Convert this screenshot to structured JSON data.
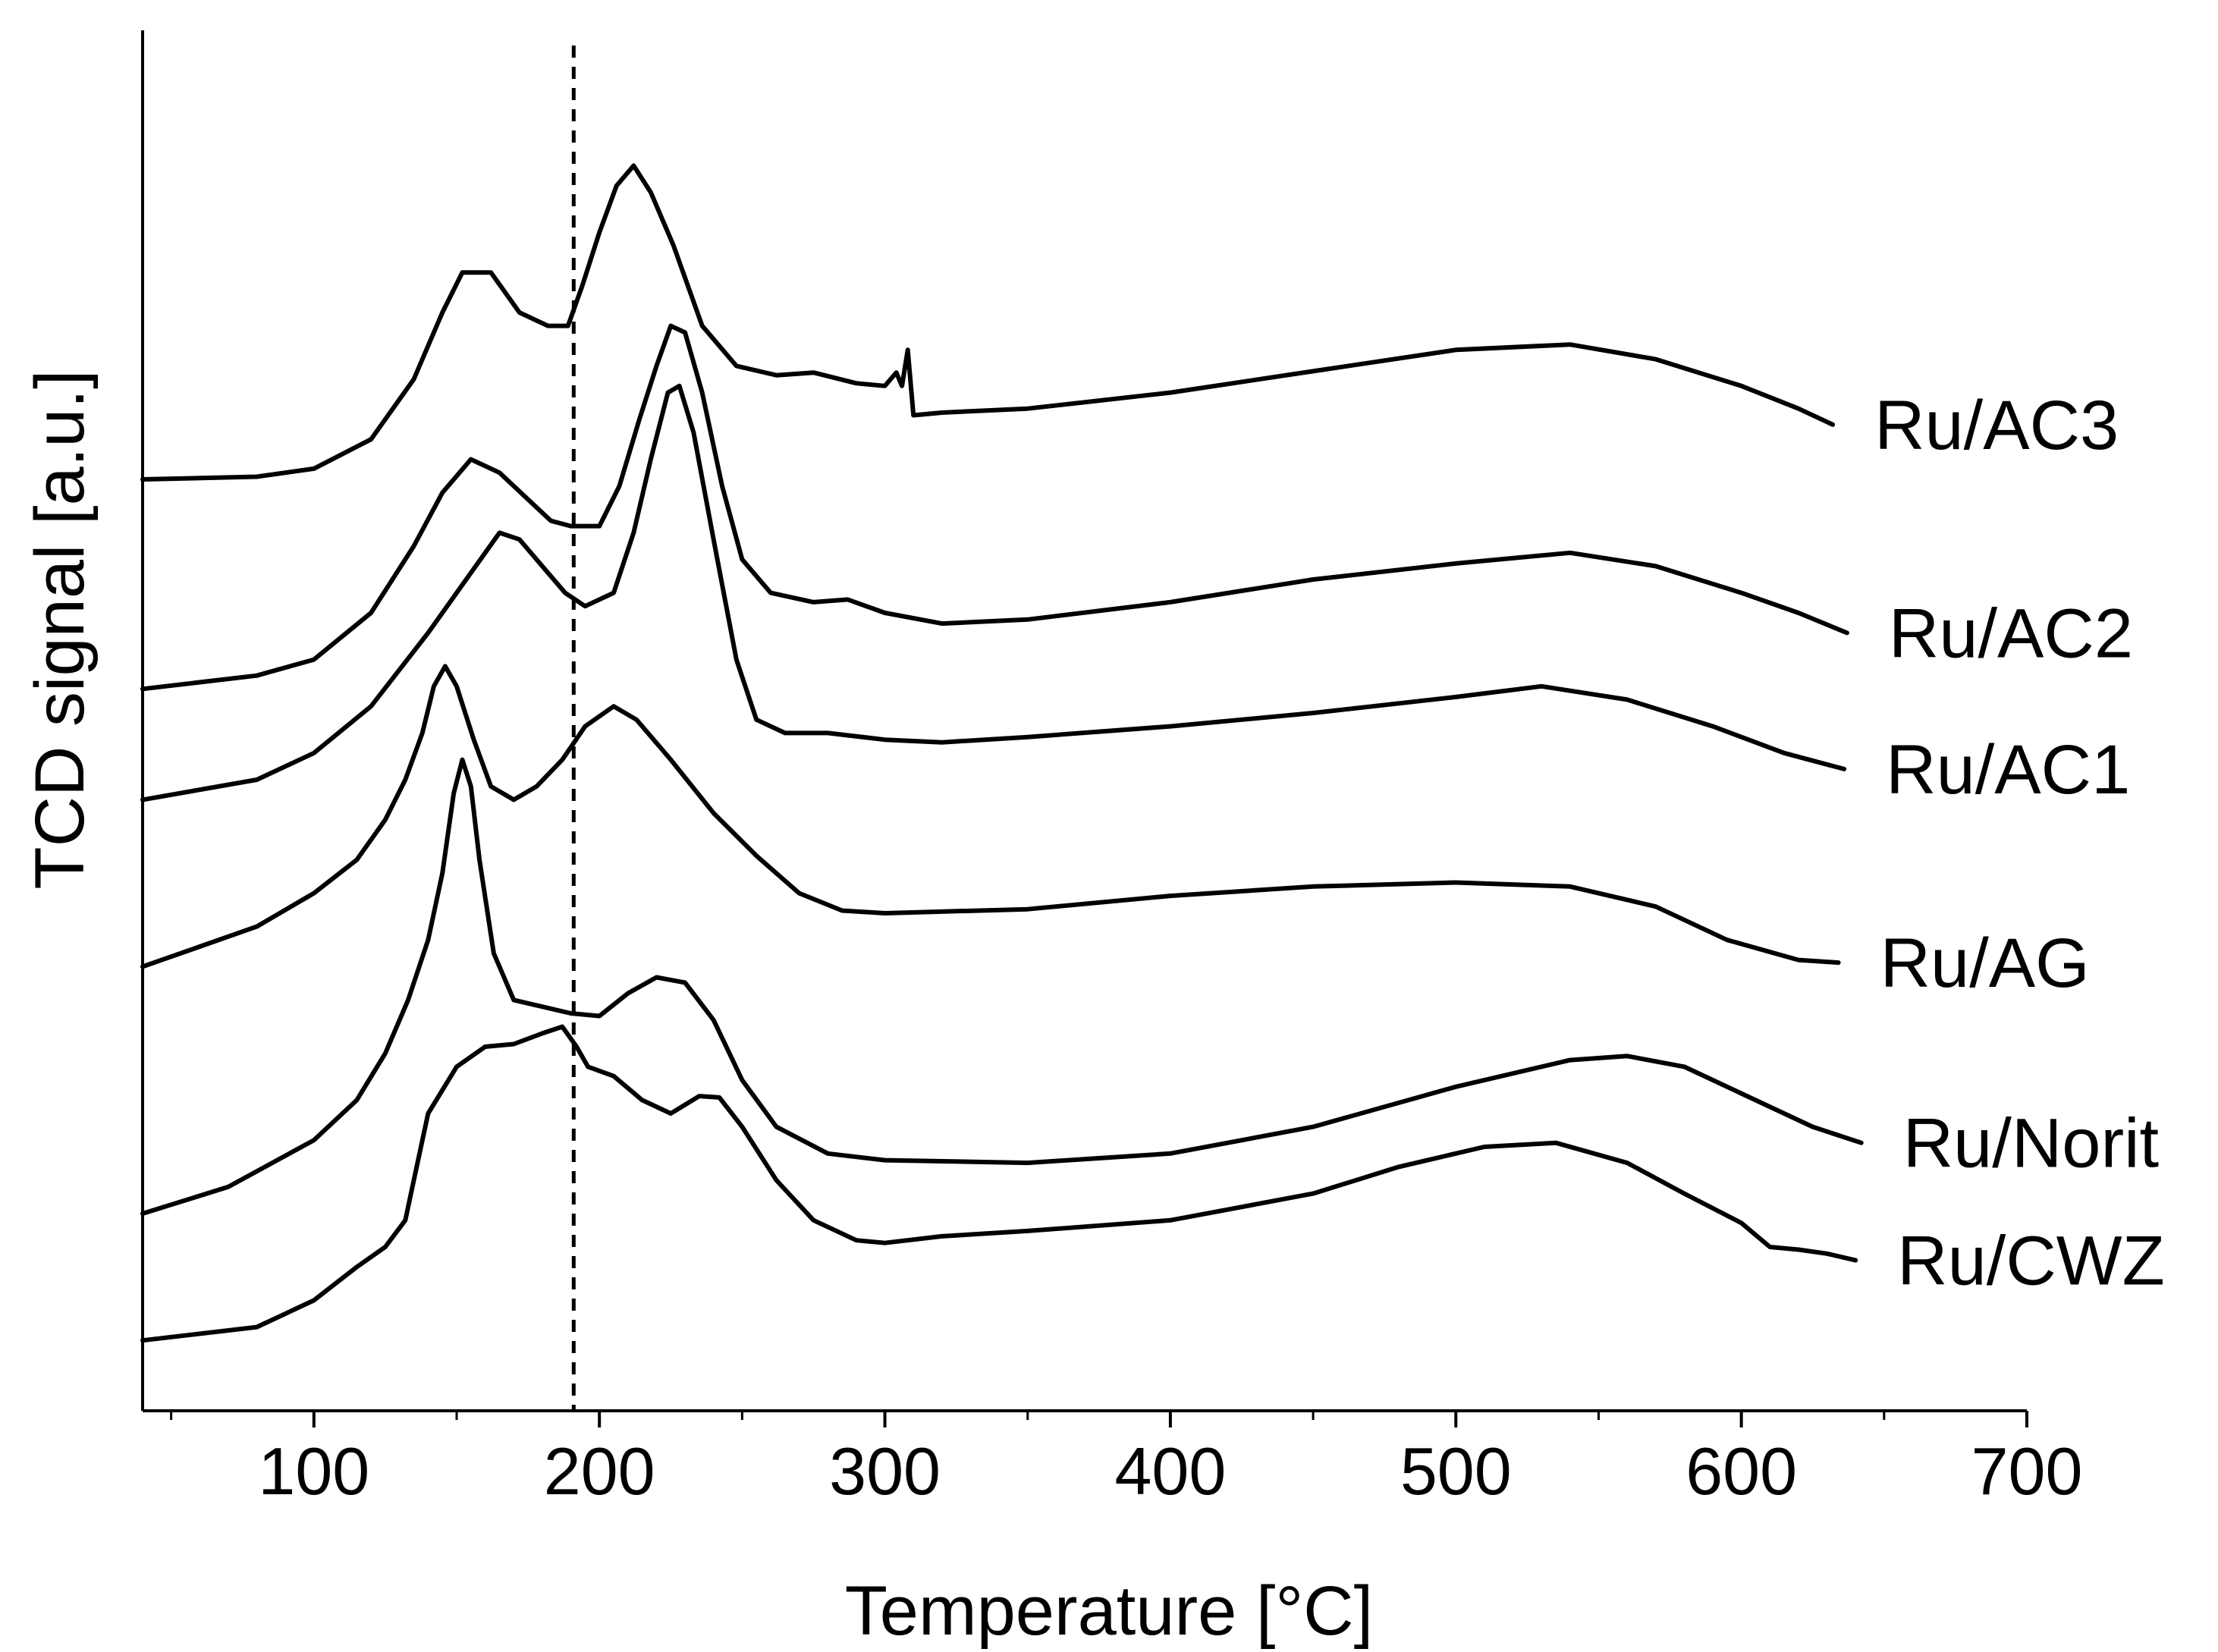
{
  "chart_data": {
    "type": "line",
    "title": "",
    "xlabel": "Temperature [°C]",
    "ylabel": "TCD signal [a.u.]",
    "xlim": [
      40,
      700
    ],
    "ylim": [
      0,
      1
    ],
    "x_ticks": [
      100,
      200,
      300,
      400,
      500,
      600,
      700
    ],
    "x_tick_labels": [
      "100",
      "200",
      "300",
      "400",
      "500",
      "600",
      "700"
    ],
    "y_ticks_shown": false,
    "reference_line": {
      "x": 191,
      "style": "dashed"
    },
    "series": [
      {
        "name": "Ru/AC3",
        "points": [
          [
            40,
            0.675
          ],
          [
            80,
            0.677
          ],
          [
            100,
            0.683
          ],
          [
            120,
            0.705
          ],
          [
            135,
            0.75
          ],
          [
            145,
            0.8
          ],
          [
            152,
            0.83
          ],
          [
            162,
            0.83
          ],
          [
            172,
            0.8
          ],
          [
            182,
            0.79
          ],
          [
            189,
            0.79
          ],
          [
            194,
            0.82
          ],
          [
            200,
            0.86
          ],
          [
            206,
            0.895
          ],
          [
            212,
            0.91
          ],
          [
            218,
            0.89
          ],
          [
            226,
            0.85
          ],
          [
            236,
            0.79
          ],
          [
            248,
            0.76
          ],
          [
            262,
            0.753
          ],
          [
            275,
            0.755
          ],
          [
            290,
            0.747
          ],
          [
            300,
            0.745
          ],
          [
            304,
            0.755
          ],
          [
            306,
            0.745
          ],
          [
            308,
            0.772
          ],
          [
            310,
            0.723
          ],
          [
            320,
            0.725
          ],
          [
            350,
            0.728
          ],
          [
            400,
            0.74
          ],
          [
            450,
            0.756
          ],
          [
            500,
            0.772
          ],
          [
            540,
            0.776
          ],
          [
            570,
            0.765
          ],
          [
            600,
            0.745
          ],
          [
            620,
            0.728
          ],
          [
            632,
            0.716
          ]
        ]
      },
      {
        "name": "Ru/AC2",
        "points": [
          [
            40,
            0.518
          ],
          [
            80,
            0.528
          ],
          [
            100,
            0.54
          ],
          [
            120,
            0.575
          ],
          [
            135,
            0.625
          ],
          [
            145,
            0.665
          ],
          [
            155,
            0.69
          ],
          [
            165,
            0.68
          ],
          [
            175,
            0.66
          ],
          [
            183,
            0.644
          ],
          [
            190,
            0.64
          ],
          [
            200,
            0.64
          ],
          [
            207,
            0.67
          ],
          [
            214,
            0.72
          ],
          [
            220,
            0.76
          ],
          [
            225,
            0.79
          ],
          [
            230,
            0.785
          ],
          [
            236,
            0.74
          ],
          [
            243,
            0.67
          ],
          [
            250,
            0.615
          ],
          [
            260,
            0.59
          ],
          [
            275,
            0.583
          ],
          [
            287,
            0.585
          ],
          [
            300,
            0.575
          ],
          [
            320,
            0.567
          ],
          [
            350,
            0.57
          ],
          [
            400,
            0.583
          ],
          [
            450,
            0.6
          ],
          [
            500,
            0.612
          ],
          [
            540,
            0.62
          ],
          [
            570,
            0.61
          ],
          [
            600,
            0.59
          ],
          [
            620,
            0.575
          ],
          [
            637,
            0.56
          ]
        ]
      },
      {
        "name": "Ru/AC1",
        "points": [
          [
            40,
            0.435
          ],
          [
            80,
            0.45
          ],
          [
            100,
            0.47
          ],
          [
            120,
            0.505
          ],
          [
            140,
            0.56
          ],
          [
            155,
            0.605
          ],
          [
            165,
            0.635
          ],
          [
            172,
            0.63
          ],
          [
            180,
            0.61
          ],
          [
            188,
            0.59
          ],
          [
            195,
            0.58
          ],
          [
            205,
            0.59
          ],
          [
            212,
            0.635
          ],
          [
            218,
            0.69
          ],
          [
            224,
            0.74
          ],
          [
            228,
            0.745
          ],
          [
            233,
            0.71
          ],
          [
            240,
            0.63
          ],
          [
            248,
            0.54
          ],
          [
            255,
            0.495
          ],
          [
            265,
            0.485
          ],
          [
            280,
            0.485
          ],
          [
            300,
            0.48
          ],
          [
            320,
            0.478
          ],
          [
            350,
            0.482
          ],
          [
            400,
            0.49
          ],
          [
            450,
            0.5
          ],
          [
            500,
            0.512
          ],
          [
            530,
            0.52
          ],
          [
            560,
            0.51
          ],
          [
            590,
            0.49
          ],
          [
            615,
            0.47
          ],
          [
            636,
            0.458
          ]
        ]
      },
      {
        "name": "Ru/AG",
        "points": [
          [
            40,
            0.31
          ],
          [
            60,
            0.325
          ],
          [
            80,
            0.34
          ],
          [
            100,
            0.365
          ],
          [
            115,
            0.39
          ],
          [
            125,
            0.42
          ],
          [
            132,
            0.45
          ],
          [
            138,
            0.485
          ],
          [
            142,
            0.52
          ],
          [
            146,
            0.535
          ],
          [
            150,
            0.52
          ],
          [
            156,
            0.48
          ],
          [
            162,
            0.445
          ],
          [
            170,
            0.435
          ],
          [
            178,
            0.445
          ],
          [
            187,
            0.465
          ],
          [
            195,
            0.49
          ],
          [
            205,
            0.505
          ],
          [
            213,
            0.495
          ],
          [
            225,
            0.465
          ],
          [
            240,
            0.425
          ],
          [
            255,
            0.393
          ],
          [
            270,
            0.365
          ],
          [
            285,
            0.352
          ],
          [
            300,
            0.35
          ],
          [
            350,
            0.353
          ],
          [
            400,
            0.363
          ],
          [
            450,
            0.37
          ],
          [
            500,
            0.373
          ],
          [
            540,
            0.37
          ],
          [
            570,
            0.355
          ],
          [
            595,
            0.33
          ],
          [
            620,
            0.315
          ],
          [
            634,
            0.313
          ]
        ]
      },
      {
        "name": "Ru/Norit",
        "points": [
          [
            40,
            0.125
          ],
          [
            70,
            0.145
          ],
          [
            100,
            0.18
          ],
          [
            115,
            0.21
          ],
          [
            125,
            0.245
          ],
          [
            133,
            0.285
          ],
          [
            140,
            0.33
          ],
          [
            145,
            0.38
          ],
          [
            149,
            0.44
          ],
          [
            152,
            0.465
          ],
          [
            155,
            0.445
          ],
          [
            158,
            0.39
          ],
          [
            163,
            0.32
          ],
          [
            170,
            0.285
          ],
          [
            180,
            0.28
          ],
          [
            190,
            0.275
          ],
          [
            200,
            0.273
          ],
          [
            210,
            0.29
          ],
          [
            220,
            0.302
          ],
          [
            230,
            0.298
          ],
          [
            240,
            0.27
          ],
          [
            250,
            0.225
          ],
          [
            262,
            0.19
          ],
          [
            280,
            0.17
          ],
          [
            300,
            0.165
          ],
          [
            350,
            0.163
          ],
          [
            400,
            0.17
          ],
          [
            450,
            0.19
          ],
          [
            500,
            0.22
          ],
          [
            540,
            0.24
          ],
          [
            560,
            0.243
          ],
          [
            580,
            0.235
          ],
          [
            600,
            0.215
          ],
          [
            625,
            0.19
          ],
          [
            642,
            0.178
          ]
        ]
      },
      {
        "name": "Ru/CWZ",
        "points": [
          [
            40,
            0.03
          ],
          [
            80,
            0.04
          ],
          [
            100,
            0.06
          ],
          [
            115,
            0.085
          ],
          [
            125,
            0.1
          ],
          [
            132,
            0.12
          ],
          [
            136,
            0.16
          ],
          [
            140,
            0.2
          ],
          [
            150,
            0.235
          ],
          [
            160,
            0.25
          ],
          [
            170,
            0.252
          ],
          [
            180,
            0.26
          ],
          [
            187,
            0.265
          ],
          [
            192,
            0.25
          ],
          [
            196,
            0.235
          ],
          [
            205,
            0.228
          ],
          [
            215,
            0.21
          ],
          [
            225,
            0.2
          ],
          [
            235,
            0.213
          ],
          [
            242,
            0.212
          ],
          [
            250,
            0.19
          ],
          [
            262,
            0.15
          ],
          [
            275,
            0.12
          ],
          [
            290,
            0.105
          ],
          [
            300,
            0.103
          ],
          [
            320,
            0.108
          ],
          [
            350,
            0.112
          ],
          [
            400,
            0.12
          ],
          [
            450,
            0.14
          ],
          [
            480,
            0.16
          ],
          [
            510,
            0.175
          ],
          [
            535,
            0.178
          ],
          [
            560,
            0.163
          ],
          [
            580,
            0.14
          ],
          [
            600,
            0.118
          ],
          [
            610,
            0.1
          ],
          [
            620,
            0.098
          ],
          [
            630,
            0.095
          ],
          [
            640,
            0.09
          ]
        ]
      }
    ]
  }
}
